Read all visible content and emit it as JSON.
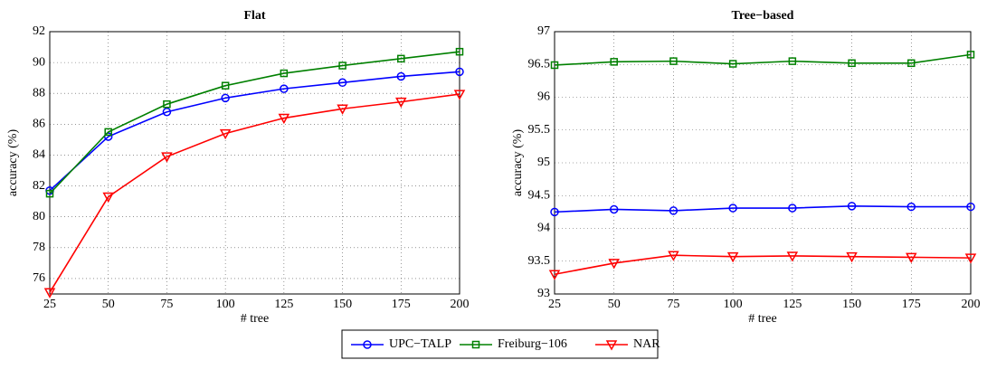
{
  "chart_data": [
    {
      "type": "line",
      "title": "Flat",
      "xlabel": "# tree",
      "ylabel": "accuracy (%)",
      "x": [
        25,
        50,
        75,
        100,
        125,
        150,
        175,
        200
      ],
      "xlim": [
        25,
        200
      ],
      "xticks": [
        25,
        50,
        75,
        100,
        125,
        150,
        175,
        200
      ],
      "ylim": [
        75,
        92
      ],
      "yticks": [
        76,
        78,
        80,
        82,
        84,
        86,
        88,
        90,
        92
      ],
      "grid": true,
      "series": [
        {
          "name": "UPC−TALP",
          "color": "#0000ff",
          "marker": "circle",
          "values": [
            81.7,
            85.2,
            86.8,
            87.7,
            88.3,
            88.7,
            89.1,
            89.4
          ]
        },
        {
          "name": "Freiburg−106",
          "color": "#008000",
          "marker": "square",
          "values": [
            81.5,
            85.5,
            87.3,
            88.5,
            89.3,
            89.8,
            90.25,
            90.7
          ]
        },
        {
          "name": "NAR",
          "color": "#ff0000",
          "marker": "triangle-down",
          "values": [
            75.1,
            81.3,
            83.9,
            85.4,
            86.4,
            87.0,
            87.45,
            87.95
          ]
        }
      ]
    },
    {
      "type": "line",
      "title": "Tree−based",
      "xlabel": "# tree",
      "ylabel": "accuracy (%)",
      "x": [
        25,
        50,
        75,
        100,
        125,
        150,
        175,
        200
      ],
      "xlim": [
        25,
        200
      ],
      "xticks": [
        25,
        50,
        75,
        100,
        125,
        150,
        175,
        200
      ],
      "ylim": [
        93,
        97
      ],
      "yticks": [
        93,
        93.5,
        94,
        94.5,
        95,
        95.5,
        96,
        96.5,
        97
      ],
      "grid": true,
      "series": [
        {
          "name": "UPC−TALP",
          "color": "#0000ff",
          "marker": "circle",
          "values": [
            94.25,
            94.29,
            94.27,
            94.31,
            94.31,
            94.34,
            94.33,
            94.33
          ]
        },
        {
          "name": "Freiburg−106",
          "color": "#008000",
          "marker": "square",
          "values": [
            96.49,
            96.54,
            96.55,
            96.51,
            96.55,
            96.52,
            96.52,
            96.65
          ]
        },
        {
          "name": "NAR",
          "color": "#ff0000",
          "marker": "triangle-down",
          "values": [
            93.3,
            93.47,
            93.59,
            93.57,
            93.58,
            93.57,
            93.56,
            93.55
          ]
        }
      ]
    }
  ]
}
